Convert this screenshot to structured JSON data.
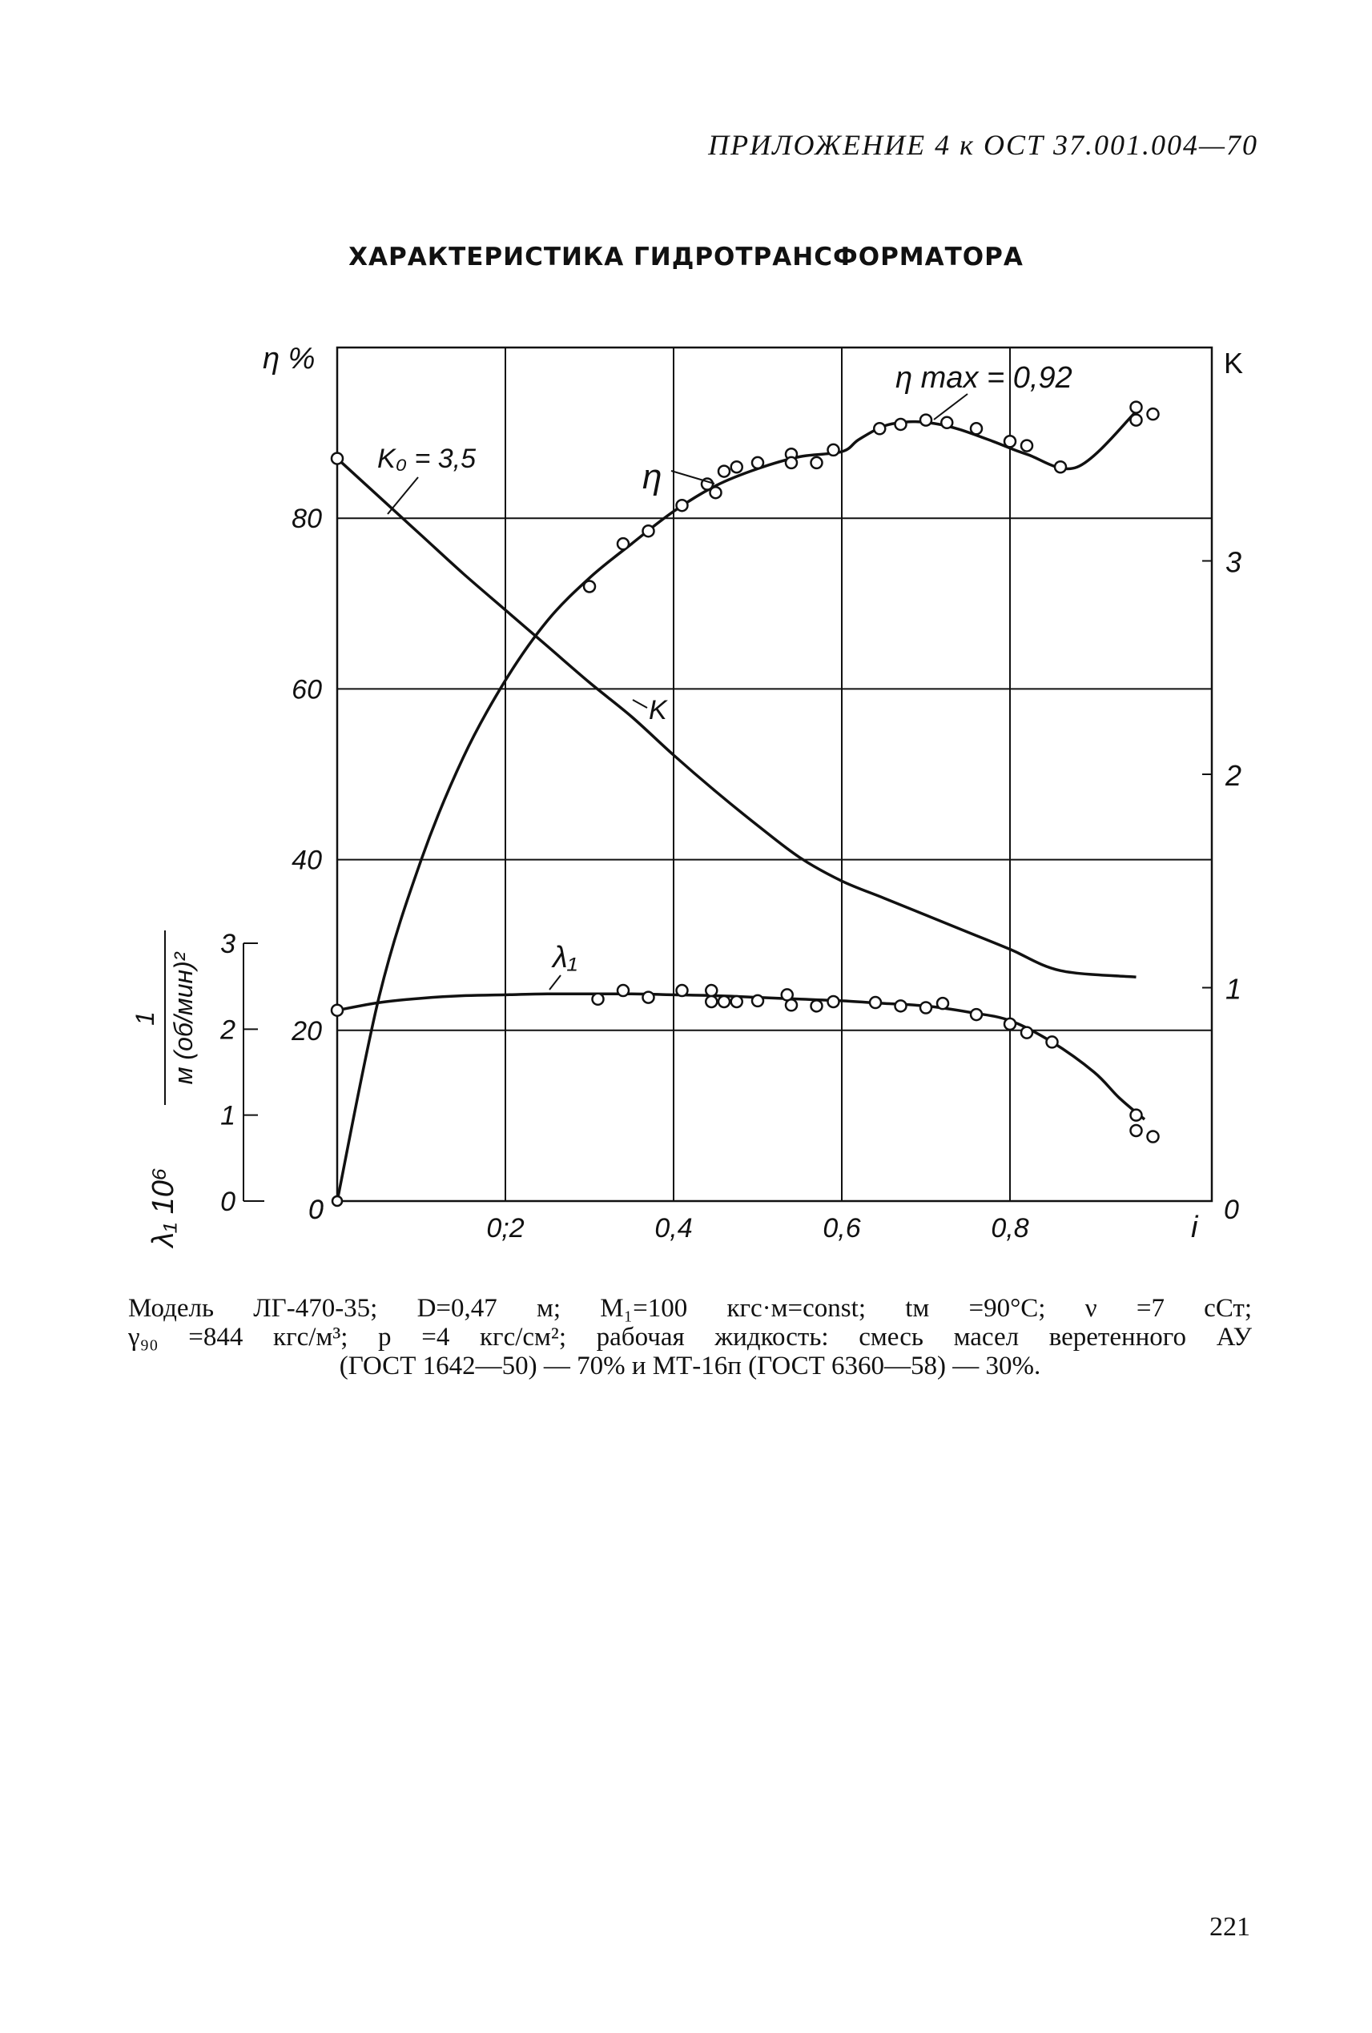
{
  "header": {
    "running_head": "ПРИЛОЖЕНИЕ 4 к ОСТ 37.001.004—70"
  },
  "chart_data": {
    "type": "line",
    "title": "ХАРАКТЕРИСТИКА ГИДРОТРАНСФОРМАТОРА",
    "xlabel": "i",
    "xlim": [
      0,
      1.04
    ],
    "x_ticks": [
      {
        "value": 0.2,
        "label": "0;2"
      },
      {
        "value": 0.4,
        "label": "0,4"
      },
      {
        "value": 0.6,
        "label": "0,6"
      },
      {
        "value": 0.8,
        "label": "0,8"
      }
    ],
    "x_zero_label": "0",
    "y_left": {
      "label": "η %",
      "lim": [
        0,
        100
      ],
      "ticks": [
        {
          "value": 20,
          "label": "20"
        },
        {
          "value": 40,
          "label": "40"
        },
        {
          "value": 60,
          "label": "60"
        },
        {
          "value": 80,
          "label": "80"
        }
      ],
      "zero_label": "0"
    },
    "y_right": {
      "label": "K",
      "lim": [
        0,
        4
      ],
      "ticks": [
        {
          "value": 1,
          "label": "1"
        },
        {
          "value": 2,
          "label": "2"
        },
        {
          "value": 3,
          "label": "3"
        }
      ],
      "zero_label": "0"
    },
    "y_lambda": {
      "label_main": "λ₁ 10⁶",
      "label_frac_num": "1",
      "label_frac_den": "м (об/мин)²",
      "lim": [
        0,
        3
      ],
      "ticks": [
        {
          "value": 0,
          "label": "0"
        },
        {
          "value": 1,
          "label": "1"
        },
        {
          "value": 2,
          "label": "2"
        },
        {
          "value": 3,
          "label": "3"
        }
      ]
    },
    "grid": true,
    "series": [
      {
        "name": "η",
        "axis": "left",
        "x": [
          0,
          0.05,
          0.1,
          0.15,
          0.2,
          0.25,
          0.3,
          0.35,
          0.4,
          0.45,
          0.5,
          0.55,
          0.6,
          0.62,
          0.65,
          0.68,
          0.71,
          0.74,
          0.78,
          0.82,
          0.88,
          0.95
        ],
        "y": [
          0,
          24,
          40,
          52,
          61,
          68,
          73,
          77,
          80.8,
          83.8,
          85.8,
          87.2,
          87.8,
          89.2,
          90.8,
          91.3,
          91.1,
          90.4,
          89.0,
          87.5,
          86.0,
          92.5
        ],
        "points_x": [
          0.3,
          0.34,
          0.37,
          0.41,
          0.44,
          0.45,
          0.46,
          0.475,
          0.5,
          0.54,
          0.54,
          0.57,
          0.59,
          0.645,
          0.67,
          0.7,
          0.725,
          0.76,
          0.8,
          0.82,
          0.86,
          0.95,
          0.95,
          0.97
        ],
        "points_y": [
          72,
          77,
          78.5,
          81.5,
          84,
          83,
          85.5,
          86,
          86.5,
          87.5,
          86.5,
          86.5,
          88,
          90.5,
          91,
          91.5,
          91.2,
          90.5,
          89,
          88.5,
          86,
          93,
          91.5,
          92.2
        ]
      },
      {
        "name": "K",
        "axis": "right",
        "x": [
          0,
          0.05,
          0.1,
          0.15,
          0.2,
          0.25,
          0.3,
          0.35,
          0.4,
          0.45,
          0.5,
          0.55,
          0.6,
          0.65,
          0.7,
          0.75,
          0.8,
          0.86,
          0.95
        ],
        "y": [
          3.48,
          3.3,
          3.12,
          2.94,
          2.77,
          2.6,
          2.43,
          2.27,
          2.09,
          1.92,
          1.76,
          1.61,
          1.5,
          1.42,
          1.34,
          1.26,
          1.18,
          1.08,
          1.05
        ],
        "annotation": "K₀ = 3,5"
      },
      {
        "name": "λ₁",
        "axis": "lambda",
        "x": [
          0,
          0.05,
          0.1,
          0.15,
          0.2,
          0.25,
          0.3,
          0.35,
          0.4,
          0.45,
          0.5,
          0.55,
          0.6,
          0.65,
          0.7,
          0.75,
          0.8,
          0.85,
          0.9,
          0.93,
          0.96
        ],
        "y": [
          2.22,
          2.31,
          2.36,
          2.39,
          2.4,
          2.41,
          2.41,
          2.41,
          2.4,
          2.39,
          2.37,
          2.35,
          2.33,
          2.3,
          2.27,
          2.2,
          2.1,
          1.85,
          1.5,
          1.2,
          0.95
        ],
        "points_x": [
          0.31,
          0.34,
          0.37,
          0.41,
          0.445,
          0.445,
          0.46,
          0.475,
          0.5,
          0.535,
          0.54,
          0.57,
          0.59,
          0.64,
          0.67,
          0.7,
          0.72,
          0.76,
          0.8,
          0.82,
          0.85,
          0.95,
          0.95,
          0.97
        ],
        "points_y": [
          2.35,
          2.45,
          2.37,
          2.45,
          2.45,
          2.32,
          2.32,
          2.32,
          2.33,
          2.4,
          2.28,
          2.27,
          2.32,
          2.31,
          2.27,
          2.25,
          2.3,
          2.17,
          2.06,
          1.96,
          1.85,
          1.0,
          0.82,
          0.75
        ]
      }
    ],
    "annotations": {
      "eta_max": "η max = 0,92",
      "eta_label": "η",
      "k_label": "K",
      "k0_label": "K₀ = 3,5",
      "lambda_label": "λ₁"
    }
  },
  "caption": {
    "line1": "Модель ЛГ-470-35; D=0,47 м; M₁=100 кгс·м=const; tм =90°С; ν =7 сСт;",
    "line2": "γ₉₀ =844 кгс/м³; p =4 кгс/см²; рабочая жидкость: смесь масел веретенного АУ",
    "line3": "(ГОСТ 1642—50) — 70% и МТ-16п (ГОСТ 6360—58) — 30%."
  },
  "page_number": "221"
}
